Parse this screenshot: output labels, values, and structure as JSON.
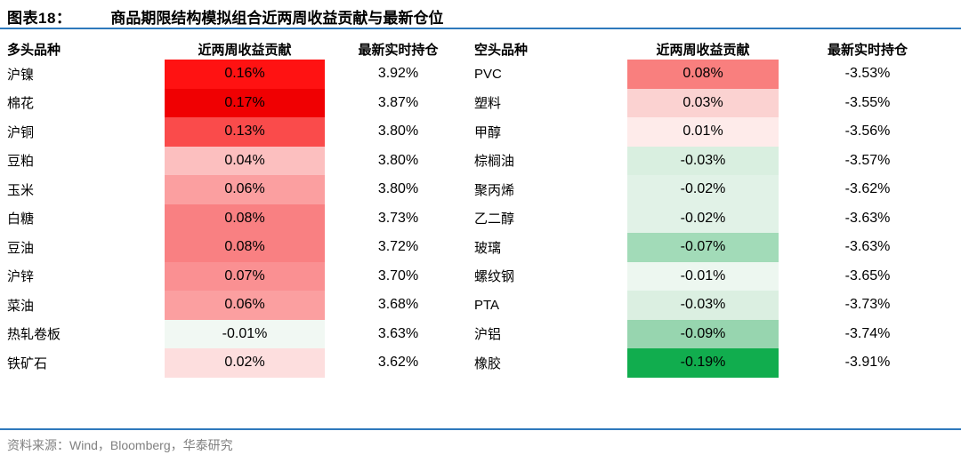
{
  "title": {
    "figure_label": "图表18：",
    "figure_title": "商品期限结构模拟组合近两周收益贡献与最新仓位"
  },
  "accent": {
    "rule_blue": "#2e79bc",
    "source_gray": "#808080"
  },
  "long_table": {
    "headers": {
      "variety": "多头品种",
      "contribution": "近两周收益贡献",
      "position": "最新实时持仓"
    },
    "rows": [
      {
        "name": "沪镍",
        "contribution": "0.16%",
        "position": "3.92%",
        "color": "#ff1212"
      },
      {
        "name": "棉花",
        "contribution": "0.17%",
        "position": "3.87%",
        "color": "#f00002"
      },
      {
        "name": "沪铜",
        "contribution": "0.13%",
        "position": "3.80%",
        "color": "#fa4b4b"
      },
      {
        "name": "豆粕",
        "contribution": "0.04%",
        "position": "3.80%",
        "color": "#fcbfbf"
      },
      {
        "name": "玉米",
        "contribution": "0.06%",
        "position": "3.80%",
        "color": "#fb9fa0"
      },
      {
        "name": "白糖",
        "contribution": "0.08%",
        "position": "3.73%",
        "color": "#f98082"
      },
      {
        "name": "豆油",
        "contribution": "0.08%",
        "position": "3.72%",
        "color": "#f98082"
      },
      {
        "name": "沪锌",
        "contribution": "0.07%",
        "position": "3.70%",
        "color": "#fa9092"
      },
      {
        "name": "菜油",
        "contribution": "0.06%",
        "position": "3.68%",
        "color": "#fb9fa0"
      },
      {
        "name": "热轧卷板",
        "contribution": "-0.01%",
        "position": "3.63%",
        "color": "#f1f8f3"
      },
      {
        "name": "铁矿石",
        "contribution": "0.02%",
        "position": "3.62%",
        "color": "#fddede"
      }
    ]
  },
  "short_table": {
    "headers": {
      "variety": "空头品种",
      "contribution": "近两周收益贡献",
      "position": "最新实时持仓"
    },
    "rows": [
      {
        "name": "PVC",
        "contribution": "0.08%",
        "position": "-3.53%",
        "color": "#f97f7e"
      },
      {
        "name": "塑料",
        "contribution": "0.03%",
        "position": "-3.55%",
        "color": "#fbd2d1"
      },
      {
        "name": "甲醇",
        "contribution": "0.01%",
        "position": "-3.56%",
        "color": "#feebea"
      },
      {
        "name": "棕榈油",
        "contribution": "-0.03%",
        "position": "-3.57%",
        "color": "#d9efe0"
      },
      {
        "name": "聚丙烯",
        "contribution": "-0.02%",
        "position": "-3.62%",
        "color": "#e1f2e7"
      },
      {
        "name": "乙二醇",
        "contribution": "-0.02%",
        "position": "-3.63%",
        "color": "#e1f2e7"
      },
      {
        "name": "玻璃",
        "contribution": "-0.07%",
        "position": "-3.63%",
        "color": "#a2dbb8"
      },
      {
        "name": "螺纹钢",
        "contribution": "-0.01%",
        "position": "-3.65%",
        "color": "#edf7f0"
      },
      {
        "name": "PTA",
        "contribution": "-0.03%",
        "position": "-3.73%",
        "color": "#dbefe1"
      },
      {
        "name": "沪铝",
        "contribution": "-0.09%",
        "position": "-3.74%",
        "color": "#97d5af"
      },
      {
        "name": "橡胶",
        "contribution": "-0.19%",
        "position": "-3.91%",
        "color": "#11ad4e"
      }
    ]
  },
  "footer": {
    "source": "资料来源：Wind，Bloomberg，华泰研究"
  }
}
